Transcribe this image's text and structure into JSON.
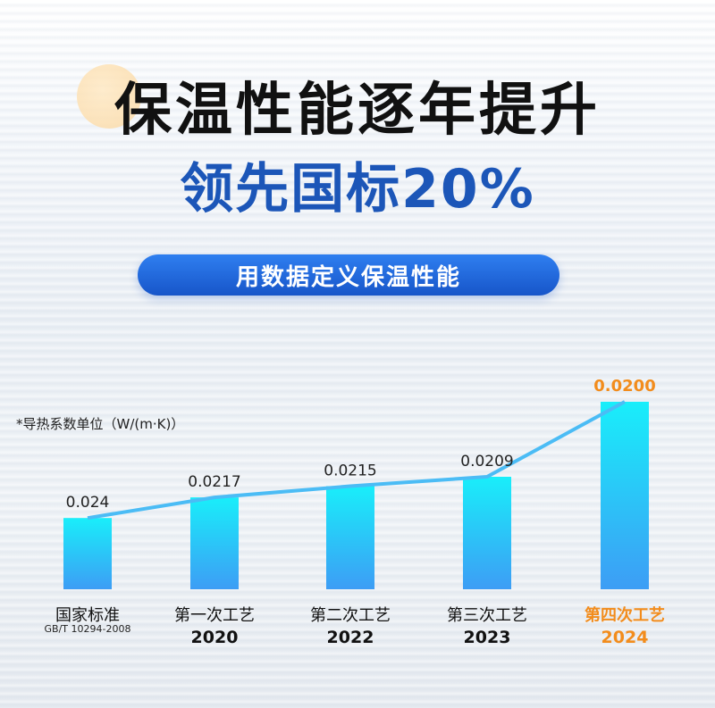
{
  "title": "保温性能逐年提升",
  "subtitle": "领先国标20%",
  "pill_label": "用数据定义保温性能",
  "colors": {
    "accent": "#1c56b8",
    "bar_top": "#19eefa",
    "bar_bottom": "#3d9df5",
    "line": "#4bbcf5",
    "highlight": "#f28c1c",
    "text": "#111111"
  },
  "chart_data": {
    "type": "bar",
    "unit_note": "*导热系数单位（W/(m·K)）",
    "categories": [
      "国家标准",
      "第一次工艺",
      "第二次工艺",
      "第三次工艺",
      "第四次工艺"
    ],
    "sublabels": [
      "GB/T 10294-2008",
      "2020",
      "2022",
      "2023",
      "2024"
    ],
    "value_labels": [
      "0.024",
      "0.0217",
      "0.0215",
      "0.0209",
      "0.0200"
    ],
    "bar_levels": [
      0.38,
      0.49,
      0.55,
      0.6,
      1.0
    ],
    "highlight_index": 4,
    "overlay": "line connecting bar tops",
    "grid": false,
    "legend": "none"
  }
}
